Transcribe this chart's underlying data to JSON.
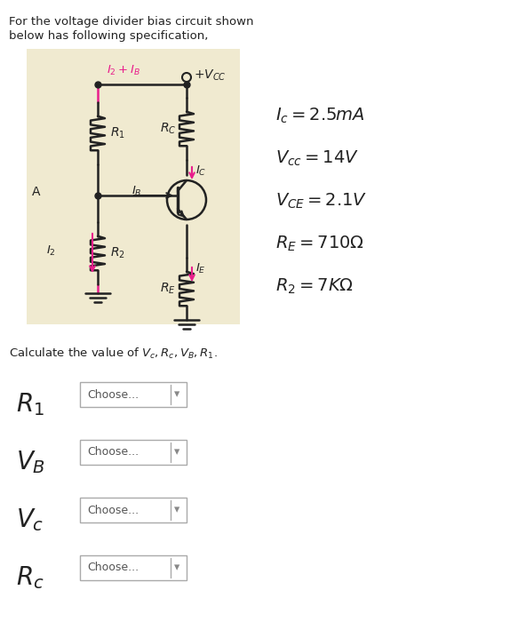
{
  "title_line1": "For the voltage divider bias circuit shown",
  "title_line2": "below has following specification,",
  "bg_color": "#f5f0e0",
  "circuit_bg": "#f0ead0",
  "pink_color": "#e91e8c",
  "dark_color": "#222222",
  "specs": [
    "I_c = 2.5mA",
    "V_{cc} = 14V",
    "V_{CE} = 2.1V",
    "R_E = 710\\Omega",
    "R_2 = 7K\\Omega"
  ],
  "calc_text": "Calculate the value of $V_c, R_c, V_B, R_1$.",
  "dropdown_labels": [
    "$R_1$",
    "$V_B$",
    "$V_c$",
    "$R_c$"
  ],
  "page_bg": "#ffffff"
}
